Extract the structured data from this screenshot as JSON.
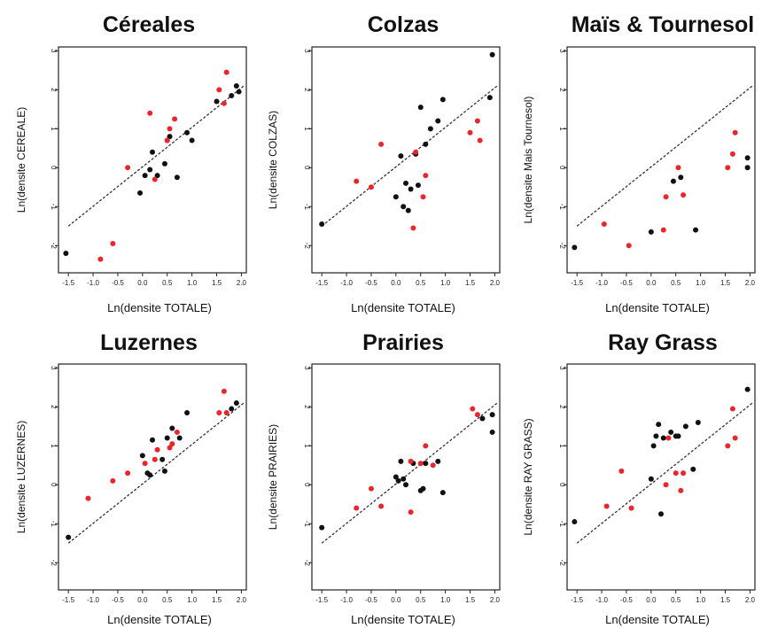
{
  "colors": {
    "black_points": "#111111",
    "red_points": "#e8262b",
    "fit_line": "#333333",
    "axis": "#222222"
  },
  "chart_data": [
    {
      "type": "scatter",
      "title": "Céreales",
      "xlabel": "Ln(densite TOTALE)",
      "ylabel": "Ln(densite CEREALE)",
      "xlim": [
        -1.7,
        2.1
      ],
      "ylim": [
        -2.7,
        3.1
      ],
      "xticks": [
        -1.5,
        -1.0,
        -0.5,
        0.0,
        0.5,
        1.0,
        1.5,
        2.0
      ],
      "xtick_labels": [
        "-1.5",
        "-1.0",
        "-0.5",
        "0.0",
        "0.5",
        "1.0",
        "1.5",
        "2.0"
      ],
      "yticks": [
        -2,
        -1,
        0,
        1,
        2,
        3
      ],
      "ytick_labels": [
        "-2",
        "-1",
        "0",
        "1",
        "2",
        "3"
      ],
      "fit_line": {
        "x": [
          -1.5,
          2.05
        ],
        "y": [
          -1.5,
          2.1
        ]
      },
      "series": [
        {
          "color": "black",
          "points": [
            [
              -1.55,
              -2.2
            ],
            [
              -0.05,
              -0.65
            ],
            [
              0.05,
              -0.2
            ],
            [
              0.15,
              -0.05
            ],
            [
              0.2,
              0.4
            ],
            [
              0.3,
              -0.2
            ],
            [
              0.45,
              0.1
            ],
            [
              0.5,
              0.7
            ],
            [
              0.55,
              0.8
            ],
            [
              0.7,
              -0.25
            ],
            [
              0.9,
              0.9
            ],
            [
              1.0,
              0.7
            ],
            [
              1.8,
              1.85
            ],
            [
              1.9,
              2.1
            ],
            [
              1.95,
              1.95
            ],
            [
              1.5,
              1.7
            ]
          ]
        },
        {
          "color": "red",
          "points": [
            [
              -0.85,
              -2.35
            ],
            [
              -0.6,
              -1.95
            ],
            [
              -0.3,
              0.0
            ],
            [
              0.15,
              1.4
            ],
            [
              0.25,
              -0.3
            ],
            [
              0.5,
              0.7
            ],
            [
              0.55,
              1.0
            ],
            [
              0.65,
              1.25
            ],
            [
              1.55,
              2.0
            ],
            [
              1.7,
              2.45
            ],
            [
              1.65,
              1.65
            ]
          ]
        }
      ]
    },
    {
      "type": "scatter",
      "title": "Colzas",
      "xlabel": "Ln(densite TOTALE)",
      "ylabel": "Ln(densite COLZAS)",
      "xlim": [
        -1.7,
        2.1
      ],
      "ylim": [
        -2.7,
        3.1
      ],
      "xticks": [
        -1.5,
        -1.0,
        -0.5,
        0.0,
        0.5,
        1.0,
        1.5,
        2.0
      ],
      "xtick_labels": [
        "-1.5",
        "-1.0",
        "-0.5",
        "0.0",
        "0.5",
        "1.0",
        "1.5",
        "2.0"
      ],
      "yticks": [
        -2,
        -1,
        0,
        1,
        2,
        3
      ],
      "ytick_labels": [
        "-2",
        "-1",
        "0",
        "1",
        "2",
        "3"
      ],
      "fit_line": {
        "x": [
          -1.5,
          2.05
        ],
        "y": [
          -1.5,
          2.1
        ]
      },
      "series": [
        {
          "color": "black",
          "points": [
            [
              -1.5,
              -1.45
            ],
            [
              0.0,
              -0.75
            ],
            [
              0.1,
              0.3
            ],
            [
              0.15,
              -1.0
            ],
            [
              0.2,
              -0.4
            ],
            [
              0.25,
              -1.1
            ],
            [
              0.3,
              -0.55
            ],
            [
              0.4,
              0.35
            ],
            [
              0.45,
              -0.45
            ],
            [
              0.5,
              1.55
            ],
            [
              0.6,
              0.6
            ],
            [
              0.7,
              1.0
            ],
            [
              0.85,
              1.2
            ],
            [
              0.95,
              1.75
            ],
            [
              1.9,
              1.8
            ],
            [
              1.95,
              2.9
            ]
          ]
        },
        {
          "color": "red",
          "points": [
            [
              -0.8,
              -0.35
            ],
            [
              -0.5,
              -0.5
            ],
            [
              -0.3,
              0.6
            ],
            [
              0.35,
              -1.55
            ],
            [
              0.4,
              0.4
            ],
            [
              0.55,
              -0.75
            ],
            [
              0.6,
              -0.2
            ],
            [
              1.5,
              0.9
            ],
            [
              1.65,
              1.2
            ],
            [
              1.7,
              0.7
            ]
          ]
        }
      ]
    },
    {
      "type": "scatter",
      "title": "Maïs & Tournesol",
      "xlabel": "Ln(densite TOTALE)",
      "ylabel": "Ln(densite Mais Tournesol)",
      "xlim": [
        -1.7,
        2.1
      ],
      "ylim": [
        -2.7,
        3.1
      ],
      "xticks": [
        -1.5,
        -1.0,
        -0.5,
        0.0,
        0.5,
        1.0,
        1.5,
        2.0
      ],
      "xtick_labels": [
        "-1.5",
        "-1.0",
        "-0.5",
        "0.0",
        "0.5",
        "1.0",
        "1.5",
        "2.0"
      ],
      "yticks": [
        -2,
        -1,
        0,
        1,
        2,
        3
      ],
      "ytick_labels": [
        "-2",
        "-1",
        "0",
        "1",
        "2",
        "3"
      ],
      "fit_line": {
        "x": [
          -1.5,
          2.05
        ],
        "y": [
          -1.5,
          2.1
        ]
      },
      "series": [
        {
          "color": "black",
          "points": [
            [
              -1.55,
              -2.05
            ],
            [
              0.0,
              -1.65
            ],
            [
              0.45,
              -0.35
            ],
            [
              0.6,
              -0.25
            ],
            [
              0.9,
              -1.6
            ],
            [
              1.95,
              0.25
            ],
            [
              1.95,
              0.0
            ]
          ]
        },
        {
          "color": "red",
          "points": [
            [
              -0.95,
              -1.45
            ],
            [
              -0.45,
              -2.0
            ],
            [
              0.25,
              -1.6
            ],
            [
              0.3,
              -0.75
            ],
            [
              0.55,
              0.0
            ],
            [
              0.65,
              -0.7
            ],
            [
              1.55,
              0.0
            ],
            [
              1.65,
              0.35
            ],
            [
              1.7,
              0.9
            ]
          ]
        }
      ]
    },
    {
      "type": "scatter",
      "title": "Luzernes",
      "xlabel": "Ln(densite TOTALE)",
      "ylabel": "Ln(densite LUZERNES)",
      "xlim": [
        -1.7,
        2.1
      ],
      "ylim": [
        -2.7,
        3.1
      ],
      "xticks": [
        -1.5,
        -1.0,
        -0.5,
        0.0,
        0.5,
        1.0,
        1.5,
        2.0
      ],
      "xtick_labels": [
        "-1.5",
        "-1.0",
        "-0.5",
        "0.0",
        "0.5",
        "1.0",
        "1.5",
        "2.0"
      ],
      "yticks": [
        -2,
        -1,
        0,
        1,
        2,
        3
      ],
      "ytick_labels": [
        "-2",
        "-1",
        "0",
        "1",
        "2",
        "3"
      ],
      "fit_line": {
        "x": [
          -1.5,
          2.05
        ],
        "y": [
          -1.5,
          2.1
        ]
      },
      "series": [
        {
          "color": "black",
          "points": [
            [
              -1.5,
              -1.35
            ],
            [
              0.0,
              0.75
            ],
            [
              0.1,
              0.3
            ],
            [
              0.15,
              0.25
            ],
            [
              0.2,
              1.15
            ],
            [
              0.4,
              0.65
            ],
            [
              0.45,
              0.35
            ],
            [
              0.5,
              1.2
            ],
            [
              0.6,
              1.45
            ],
            [
              0.75,
              1.2
            ],
            [
              0.9,
              1.85
            ],
            [
              1.8,
              1.95
            ],
            [
              1.9,
              2.1
            ]
          ]
        },
        {
          "color": "red",
          "points": [
            [
              -1.1,
              -0.35
            ],
            [
              -0.6,
              0.1
            ],
            [
              -0.3,
              0.3
            ],
            [
              0.05,
              0.55
            ],
            [
              0.25,
              0.65
            ],
            [
              0.3,
              0.9
            ],
            [
              0.55,
              0.95
            ],
            [
              0.6,
              1.05
            ],
            [
              0.7,
              1.35
            ],
            [
              1.55,
              1.85
            ],
            [
              1.65,
              2.4
            ],
            [
              1.7,
              1.85
            ]
          ]
        }
      ]
    },
    {
      "type": "scatter",
      "title": "Prairies",
      "xlabel": "Ln(densite TOTALE)",
      "ylabel": "Ln(densite PRAIRIES)",
      "xlim": [
        -1.7,
        2.1
      ],
      "ylim": [
        -2.7,
        3.1
      ],
      "xticks": [
        -1.5,
        -1.0,
        -0.5,
        0.0,
        0.5,
        1.0,
        1.5,
        2.0
      ],
      "xtick_labels": [
        "-1.5",
        "-1.0",
        "-0.5",
        "0.0",
        "0.5",
        "1.0",
        "1.5",
        "2.0"
      ],
      "yticks": [
        -2,
        -1,
        0,
        1,
        2,
        3
      ],
      "ytick_labels": [
        "-2",
        "-1",
        "0",
        "1",
        "2",
        "3"
      ],
      "fit_line": {
        "x": [
          -1.5,
          2.05
        ],
        "y": [
          -1.5,
          2.1
        ]
      },
      "series": [
        {
          "color": "black",
          "points": [
            [
              -1.5,
              -1.1
            ],
            [
              0.0,
              0.2
            ],
            [
              0.05,
              0.1
            ],
            [
              0.1,
              0.6
            ],
            [
              0.15,
              0.15
            ],
            [
              0.2,
              0.0
            ],
            [
              0.35,
              0.55
            ],
            [
              0.5,
              -0.15
            ],
            [
              0.55,
              -0.1
            ],
            [
              0.6,
              0.55
            ],
            [
              0.85,
              0.6
            ],
            [
              0.95,
              -0.2
            ],
            [
              1.75,
              1.7
            ],
            [
              1.95,
              1.8
            ],
            [
              1.95,
              1.35
            ]
          ]
        },
        {
          "color": "red",
          "points": [
            [
              -0.8,
              -0.6
            ],
            [
              -0.5,
              -0.1
            ],
            [
              -0.3,
              -0.55
            ],
            [
              0.3,
              0.6
            ],
            [
              0.3,
              -0.7
            ],
            [
              0.5,
              0.55
            ],
            [
              0.6,
              1.0
            ],
            [
              0.75,
              0.5
            ],
            [
              1.55,
              1.95
            ],
            [
              1.65,
              1.8
            ]
          ]
        }
      ]
    },
    {
      "type": "scatter",
      "title": "Ray Grass",
      "xlabel": "Ln(densite TOTALE)",
      "ylabel": "Ln(densite RAY GRASS)",
      "xlim": [
        -1.7,
        2.1
      ],
      "ylim": [
        -2.7,
        3.1
      ],
      "xticks": [
        -1.5,
        -1.0,
        -0.5,
        0.0,
        0.5,
        1.0,
        1.5,
        2.0
      ],
      "xtick_labels": [
        "-1.5",
        "-1.0",
        "-0.5",
        "0.0",
        "0.5",
        "1.0",
        "1.5",
        "2.0"
      ],
      "yticks": [
        -2,
        -1,
        0,
        1,
        2,
        3
      ],
      "ytick_labels": [
        "-2",
        "-1",
        "0",
        "1",
        "2",
        "3"
      ],
      "fit_line": {
        "x": [
          -1.5,
          2.05
        ],
        "y": [
          -1.5,
          2.1
        ]
      },
      "series": [
        {
          "color": "black",
          "points": [
            [
              -1.55,
              -0.95
            ],
            [
              0.0,
              0.15
            ],
            [
              0.05,
              1.0
            ],
            [
              0.1,
              1.25
            ],
            [
              0.15,
              1.55
            ],
            [
              0.2,
              -0.75
            ],
            [
              0.25,
              1.2
            ],
            [
              0.4,
              1.35
            ],
            [
              0.5,
              1.25
            ],
            [
              0.55,
              1.25
            ],
            [
              0.7,
              1.5
            ],
            [
              0.85,
              0.4
            ],
            [
              0.95,
              1.6
            ],
            [
              1.95,
              2.45
            ]
          ]
        },
        {
          "color": "red",
          "points": [
            [
              -0.9,
              -0.55
            ],
            [
              -0.6,
              0.35
            ],
            [
              -0.4,
              -0.6
            ],
            [
              0.3,
              0.0
            ],
            [
              0.35,
              1.2
            ],
            [
              0.5,
              0.3
            ],
            [
              0.6,
              -0.15
            ],
            [
              0.65,
              0.3
            ],
            [
              1.55,
              1.0
            ],
            [
              1.65,
              1.95
            ],
            [
              1.7,
              1.2
            ]
          ]
        }
      ]
    }
  ]
}
